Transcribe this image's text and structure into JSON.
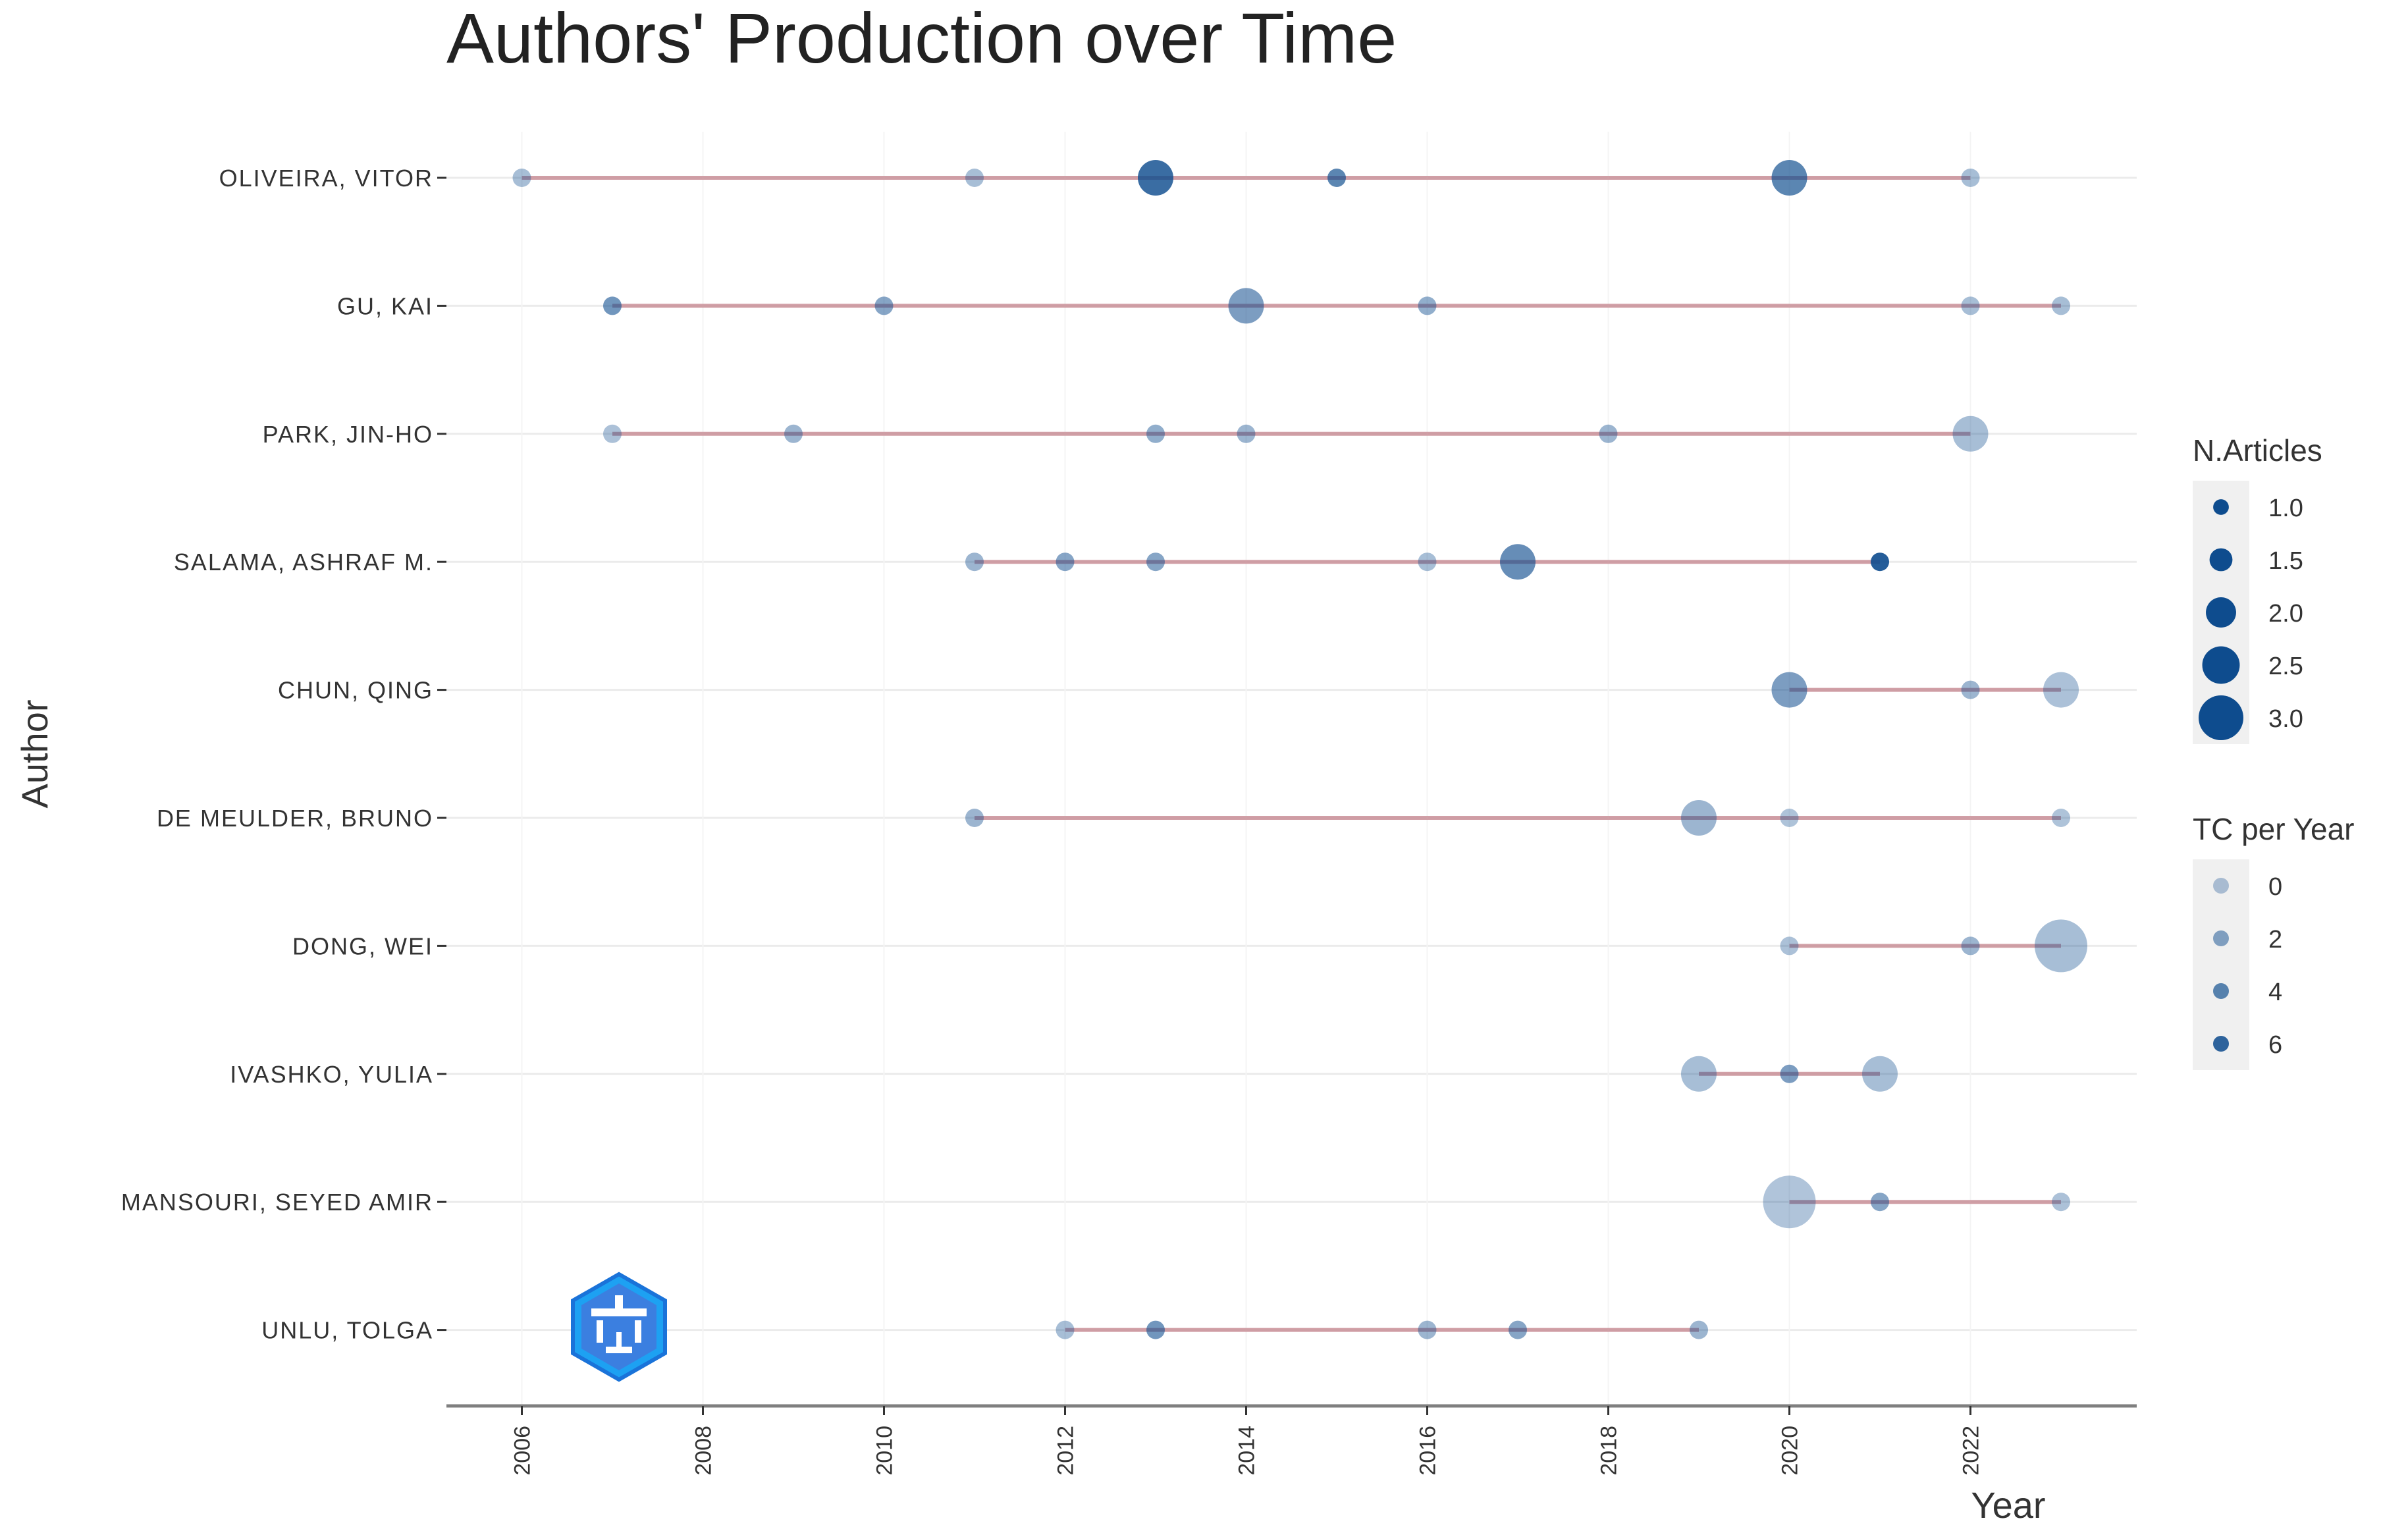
{
  "chart_data": {
    "type": "scatter",
    "title": "Authors' Production over Time",
    "xlabel": "Year",
    "ylabel": "Author",
    "xlim": [
      2005.83,
      2023.83
    ],
    "x_ticks": [
      "2006",
      "2008",
      "2010",
      "2012",
      "2014",
      "2016",
      "2018",
      "2020",
      "2022"
    ],
    "grid": true,
    "legend_position": "right",
    "colors": {
      "point": "#0e4c8e",
      "line": "#c98f98",
      "grid": "#ebebeb",
      "axis": "#7f7f7f"
    },
    "authors": [
      "OLIVEIRA, VITOR",
      "GU, KAI",
      "PARK, JIN-HO",
      "SALAMA, ASHRAF M.",
      "CHUN, QING",
      "DE MEULDER, BRUNO",
      "DONG, WEI",
      "IVASHKO, YULIA",
      "MANSOURI, SEYED AMIR",
      "UNLU, TOLGA"
    ],
    "lines": [
      {
        "author": "OLIVEIRA, VITOR",
        "from": 2006,
        "to": 2022
      },
      {
        "author": "GU, KAI",
        "from": 2007,
        "to": 2023
      },
      {
        "author": "PARK, JIN-HO",
        "from": 2007,
        "to": 2022
      },
      {
        "author": "SALAMA, ASHRAF M.",
        "from": 2011,
        "to": 2021
      },
      {
        "author": "CHUN, QING",
        "from": 2020,
        "to": 2023
      },
      {
        "author": "DE MEULDER, BRUNO",
        "from": 2011,
        "to": 2023
      },
      {
        "author": "DONG, WEI",
        "from": 2020,
        "to": 2023
      },
      {
        "author": "IVASHKO, YULIA",
        "from": 2019,
        "to": 2021
      },
      {
        "author": "MANSOURI, SEYED AMIR",
        "from": 2020,
        "to": 2023
      },
      {
        "author": "UNLU, TOLGA",
        "from": 2012,
        "to": 2019
      }
    ],
    "points": [
      {
        "author": "OLIVEIRA, VITOR",
        "year": 2006,
        "articles": 1,
        "tc": 0.5
      },
      {
        "author": "OLIVEIRA, VITOR",
        "year": 2011,
        "articles": 1,
        "tc": 0.5
      },
      {
        "author": "OLIVEIRA, VITOR",
        "year": 2013,
        "articles": 2,
        "tc": 5.5
      },
      {
        "author": "OLIVEIRA, VITOR",
        "year": 2015,
        "articles": 1,
        "tc": 4
      },
      {
        "author": "OLIVEIRA, VITOR",
        "year": 2020,
        "articles": 2,
        "tc": 4
      },
      {
        "author": "OLIVEIRA, VITOR",
        "year": 2022,
        "articles": 1,
        "tc": 0.5
      },
      {
        "author": "GU, KAI",
        "year": 2007,
        "articles": 1,
        "tc": 3
      },
      {
        "author": "GU, KAI",
        "year": 2010,
        "articles": 1,
        "tc": 2
      },
      {
        "author": "GU, KAI",
        "year": 2014,
        "articles": 2,
        "tc": 2.5
      },
      {
        "author": "GU, KAI",
        "year": 2016,
        "articles": 1,
        "tc": 1.5
      },
      {
        "author": "GU, KAI",
        "year": 2022,
        "articles": 1,
        "tc": 0.5
      },
      {
        "author": "GU, KAI",
        "year": 2023,
        "articles": 1,
        "tc": 0.5
      },
      {
        "author": "PARK, JIN-HO",
        "year": 2007,
        "articles": 1,
        "tc": 0.3
      },
      {
        "author": "PARK, JIN-HO",
        "year": 2009,
        "articles": 1,
        "tc": 1
      },
      {
        "author": "PARK, JIN-HO",
        "year": 2013,
        "articles": 1,
        "tc": 1.5
      },
      {
        "author": "PARK, JIN-HO",
        "year": 2014,
        "articles": 1,
        "tc": 1
      },
      {
        "author": "PARK, JIN-HO",
        "year": 2018,
        "articles": 1,
        "tc": 1
      },
      {
        "author": "PARK, JIN-HO",
        "year": 2022,
        "articles": 2,
        "tc": 0.5
      },
      {
        "author": "SALAMA, ASHRAF M.",
        "year": 2011,
        "articles": 1,
        "tc": 1
      },
      {
        "author": "SALAMA, ASHRAF M.",
        "year": 2012,
        "articles": 1,
        "tc": 2
      },
      {
        "author": "SALAMA, ASHRAF M.",
        "year": 2013,
        "articles": 1,
        "tc": 2
      },
      {
        "author": "SALAMA, ASHRAF M.",
        "year": 2016,
        "articles": 1,
        "tc": 0.5
      },
      {
        "author": "SALAMA, ASHRAF M.",
        "year": 2017,
        "articles": 2,
        "tc": 3.5
      },
      {
        "author": "SALAMA, ASHRAF M.",
        "year": 2021,
        "articles": 1,
        "tc": 6.5
      },
      {
        "author": "CHUN, QING",
        "year": 2020,
        "articles": 2,
        "tc": 2.5
      },
      {
        "author": "CHUN, QING",
        "year": 2022,
        "articles": 1,
        "tc": 1
      },
      {
        "author": "CHUN, QING",
        "year": 2023,
        "articles": 2,
        "tc": 0.3
      },
      {
        "author": "DE MEULDER, BRUNO",
        "year": 2011,
        "articles": 1,
        "tc": 1
      },
      {
        "author": "DE MEULDER, BRUNO",
        "year": 2019,
        "articles": 2,
        "tc": 1
      },
      {
        "author": "DE MEULDER, BRUNO",
        "year": 2020,
        "articles": 1,
        "tc": 0.2
      },
      {
        "author": "DE MEULDER, BRUNO",
        "year": 2023,
        "articles": 1,
        "tc": 0.2
      },
      {
        "author": "DONG, WEI",
        "year": 2020,
        "articles": 1,
        "tc": 0.3
      },
      {
        "author": "DONG, WEI",
        "year": 2022,
        "articles": 1,
        "tc": 1
      },
      {
        "author": "DONG, WEI",
        "year": 2023,
        "articles": 3,
        "tc": 0.5
      },
      {
        "author": "IVASHKO, YULIA",
        "year": 2019,
        "articles": 2,
        "tc": 0.5
      },
      {
        "author": "IVASHKO, YULIA",
        "year": 2020,
        "articles": 1,
        "tc": 2.5
      },
      {
        "author": "IVASHKO, YULIA",
        "year": 2021,
        "articles": 2,
        "tc": 0.5
      },
      {
        "author": "MANSOURI, SEYED AMIR",
        "year": 2020,
        "articles": 3,
        "tc": 0.1
      },
      {
        "author": "MANSOURI, SEYED AMIR",
        "year": 2021,
        "articles": 1,
        "tc": 2
      },
      {
        "author": "MANSOURI, SEYED AMIR",
        "year": 2023,
        "articles": 1,
        "tc": 0.3
      },
      {
        "author": "UNLU, TOLGA",
        "year": 2012,
        "articles": 1,
        "tc": 0.5
      },
      {
        "author": "UNLU, TOLGA",
        "year": 2013,
        "articles": 1,
        "tc": 3
      },
      {
        "author": "UNLU, TOLGA",
        "year": 2016,
        "articles": 1,
        "tc": 1
      },
      {
        "author": "UNLU, TOLGA",
        "year": 2017,
        "articles": 1,
        "tc": 2
      },
      {
        "author": "UNLU, TOLGA",
        "year": 2019,
        "articles": 1,
        "tc": 1
      }
    ],
    "legend_articles": {
      "title": "N.Articles",
      "items": [
        {
          "label": "1.0",
          "value": 1.0
        },
        {
          "label": "1.5",
          "value": 1.5
        },
        {
          "label": "2.0",
          "value": 2.0
        },
        {
          "label": "2.5",
          "value": 2.5
        },
        {
          "label": "3.0",
          "value": 3.0
        }
      ]
    },
    "legend_tc": {
      "title": "TC per Year",
      "items": [
        {
          "label": "0",
          "value": 0
        },
        {
          "label": "2",
          "value": 2
        },
        {
          "label": "4",
          "value": 4
        },
        {
          "label": "6",
          "value": 6
        }
      ]
    }
  }
}
